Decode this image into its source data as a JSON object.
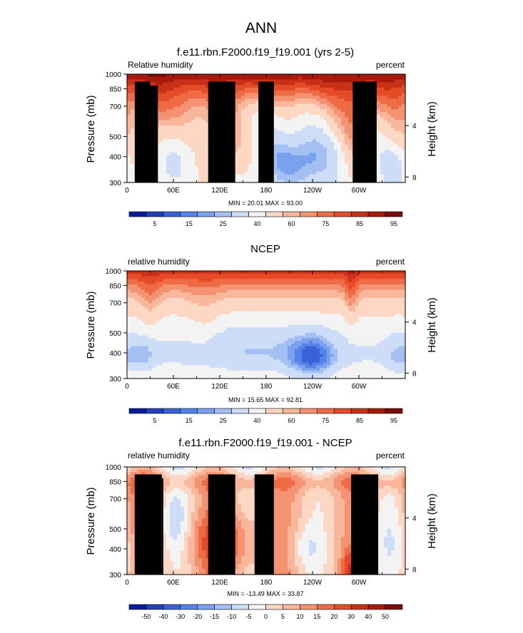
{
  "figure_title": "ANN",
  "colors": {
    "rh_palette": [
      "#081d9c",
      "#2240b8",
      "#3a62d6",
      "#5584e8",
      "#7aa1ee",
      "#a4c0f3",
      "#cdddf7",
      "#f3f3f3",
      "#fbd7c4",
      "#f8b79b",
      "#f49372",
      "#ef6b45",
      "#e44b26",
      "#c93018",
      "#a81a0c",
      "#7a0d06"
    ],
    "diff_palette": [
      "#081d9c",
      "#2240b8",
      "#3a62d6",
      "#5584e8",
      "#7aa1ee",
      "#a4c0f3",
      "#cdddf7",
      "#f3f3f3",
      "#fbd7c4",
      "#f8b79b",
      "#f49372",
      "#ef6b45",
      "#e44b26",
      "#c93018",
      "#a81a0c",
      "#7a0d06"
    ],
    "land": "#000000"
  },
  "chart_data": [
    {
      "type": "heatmap",
      "title": "f.e11.rbn.F2000.f19_f19.001 (yrs 2-5)",
      "left_label": "Relative humidity",
      "right_label": "percent",
      "ylabel": "Pressure (mb)",
      "ylabel_right": "Height (km)",
      "yticks": [
        300,
        400,
        500,
        700,
        850,
        1000
      ],
      "yticks_right": [
        8,
        4
      ],
      "ylim": [
        1000,
        300
      ],
      "xticks": [
        "0",
        "60E",
        "120E",
        "180",
        "120W",
        "60W"
      ],
      "xtick_lon": [
        0,
        60,
        120,
        180,
        240,
        300
      ],
      "xlim": [
        0,
        360
      ],
      "stats": "MIN =  20.01   MAX =  93.00",
      "colorbar_labels": [
        "5",
        "15",
        "25",
        "40",
        "60",
        "75",
        "85",
        "95"
      ],
      "levels": [
        5,
        10,
        15,
        20,
        25,
        30,
        40,
        50,
        60,
        65,
        70,
        75,
        80,
        85,
        90,
        95
      ],
      "min": 20.01,
      "max": 93.0,
      "model": "model",
      "land_blocks": [
        [
          10,
          30,
          920
        ],
        [
          30,
          40,
          880
        ],
        [
          105,
          140,
          920
        ],
        [
          170,
          190,
          920
        ],
        [
          292,
          323,
          920
        ]
      ]
    },
    {
      "type": "heatmap",
      "title": "NCEP",
      "left_label": "relative humidity",
      "right_label": "percent",
      "ylabel": "Pressure (mb)",
      "ylabel_right": "Height (km)",
      "yticks": [
        300,
        400,
        500,
        700,
        850,
        1000
      ],
      "yticks_right": [
        8,
        4
      ],
      "ylim": [
        1000,
        300
      ],
      "xticks": [
        "0",
        "60E",
        "120E",
        "180",
        "120W",
        "60W"
      ],
      "xtick_lon": [
        0,
        60,
        120,
        180,
        240,
        300
      ],
      "xlim": [
        0,
        360
      ],
      "stats": "MIN =  15.65   MAX =  92.81",
      "colorbar_labels": [
        "5",
        "15",
        "25",
        "40",
        "60",
        "75",
        "85",
        "95"
      ],
      "levels": [
        5,
        10,
        15,
        20,
        25,
        30,
        40,
        50,
        60,
        65,
        70,
        75,
        80,
        85,
        90,
        95
      ],
      "min": 15.65,
      "max": 92.81,
      "model": "obs",
      "land_blocks": []
    },
    {
      "type": "heatmap",
      "title": "f.e11.rbn.F2000.f19_f19.001 - NCEP",
      "left_label": "relative humidity",
      "right_label": "percent",
      "ylabel": "Pressure (mb)",
      "ylabel_right": "Height (km)",
      "yticks": [
        300,
        400,
        500,
        700,
        850,
        1000
      ],
      "yticks_right": [
        8,
        4
      ],
      "ylim": [
        1000,
        300
      ],
      "xticks": [
        "0",
        "60E",
        "120E",
        "180",
        "120W",
        "60W"
      ],
      "xtick_lon": [
        0,
        60,
        120,
        180,
        240,
        300
      ],
      "xlim": [
        0,
        360
      ],
      "stats": "MIN = -13.49   MAX =  33.87",
      "colorbar_labels": [
        "-50",
        "-40",
        "-30",
        "-20",
        "-15",
        "-10",
        "-5",
        "0",
        "5",
        "10",
        "15",
        "20",
        "30",
        "40",
        "50"
      ],
      "levels": [
        -50,
        -40,
        -30,
        -20,
        -15,
        -10,
        -5,
        0,
        5,
        10,
        15,
        20,
        30,
        40,
        50
      ],
      "min": -13.49,
      "max": 33.87,
      "model": "diff",
      "land_blocks": [
        [
          10,
          45,
          920
        ],
        [
          45,
          47,
          880
        ],
        [
          105,
          140,
          920
        ],
        [
          165,
          190,
          920
        ],
        [
          290,
          325,
          920
        ]
      ]
    }
  ]
}
